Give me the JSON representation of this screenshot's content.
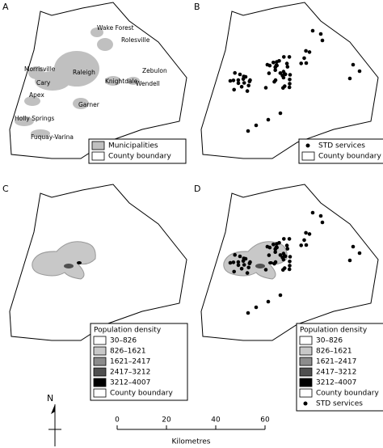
{
  "panels": [
    {
      "label": "A",
      "legend": {
        "items": [
          {
            "label": "Municipalities",
            "swatch": "#c0c0c0",
            "shape": "box"
          },
          {
            "label": "County boundary",
            "swatch": "#ffffff",
            "shape": "box"
          }
        ]
      },
      "place_names": [
        "Wake Forest",
        "Rolesville",
        "Zebulon",
        "Morrisville",
        "Raleigh",
        "Knightdale",
        "Wendell",
        "Cary",
        "Apex",
        "Garner",
        "Holly Springs",
        "Fuquay-Varina"
      ]
    },
    {
      "label": "B",
      "legend": {
        "items": [
          {
            "label": "STD services",
            "swatch": "#000000",
            "shape": "dot"
          },
          {
            "label": "County boundary",
            "swatch": "#ffffff",
            "shape": "box"
          }
        ]
      }
    },
    {
      "label": "C",
      "legend": {
        "title": "Population density",
        "items": [
          {
            "label": "30–826",
            "swatch": "#ffffff",
            "shape": "box"
          },
          {
            "label": "826–1621",
            "swatch": "#c8c8c8",
            "shape": "box"
          },
          {
            "label": "1621–2417",
            "swatch": "#8c8c8c",
            "shape": "box"
          },
          {
            "label": "2417–3212",
            "swatch": "#505050",
            "shape": "box"
          },
          {
            "label": "3212–4007",
            "swatch": "#000000",
            "shape": "box"
          },
          {
            "label": "County boundary",
            "swatch": "#ffffff",
            "shape": "box"
          }
        ]
      }
    },
    {
      "label": "D",
      "legend": {
        "title": "Population density",
        "items": [
          {
            "label": "30–826",
            "swatch": "#ffffff",
            "shape": "box"
          },
          {
            "label": "826–1621",
            "swatch": "#c8c8c8",
            "shape": "box"
          },
          {
            "label": "1621–2417",
            "swatch": "#8c8c8c",
            "shape": "box"
          },
          {
            "label": "2417–3212",
            "swatch": "#505050",
            "shape": "box"
          },
          {
            "label": "3212–4007",
            "swatch": "#000000",
            "shape": "box"
          },
          {
            "label": "County boundary",
            "swatch": "#ffffff",
            "shape": "box"
          },
          {
            "label": "STD services",
            "swatch": "#000000",
            "shape": "dot"
          }
        ]
      }
    }
  ],
  "scale_bar": {
    "ticks": [
      0,
      20,
      40,
      60
    ],
    "unit": "Kilometres"
  },
  "north_label": "N"
}
